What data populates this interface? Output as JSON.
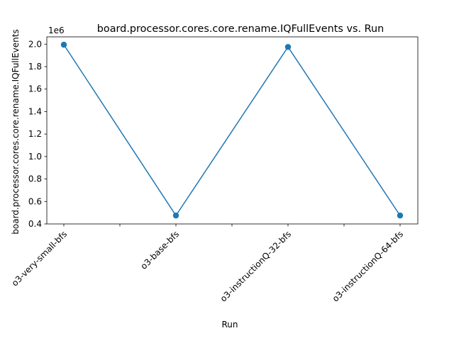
{
  "chart_data": {
    "type": "line",
    "title": "board.processor.cores.core.rename.IQFullEvents vs. Run",
    "xlabel": "Run",
    "ylabel": "board.processor.cores.core.rename.IQFullEvents",
    "y_offset_label": "1e6",
    "categories": [
      "o3-very-small-bfs",
      "o3-base-bfs",
      "o3-instructionQ-32-bfs",
      "o3-instructionQ-64-bfs"
    ],
    "values": [
      1.995,
      0.475,
      1.975,
      0.475
    ],
    "ylim": [
      0.4,
      2.065
    ],
    "yticks": [
      0.4,
      0.6,
      0.8,
      1.0,
      1.2,
      1.4,
      1.6,
      1.8,
      2.0
    ],
    "ytick_labels": [
      "0.4",
      "0.6",
      "0.8",
      "1.0",
      "1.2",
      "1.4",
      "1.6",
      "1.8",
      "2.0"
    ],
    "grid": false,
    "legend": "none",
    "line_color": "#1f77b4",
    "marker": "circle"
  }
}
